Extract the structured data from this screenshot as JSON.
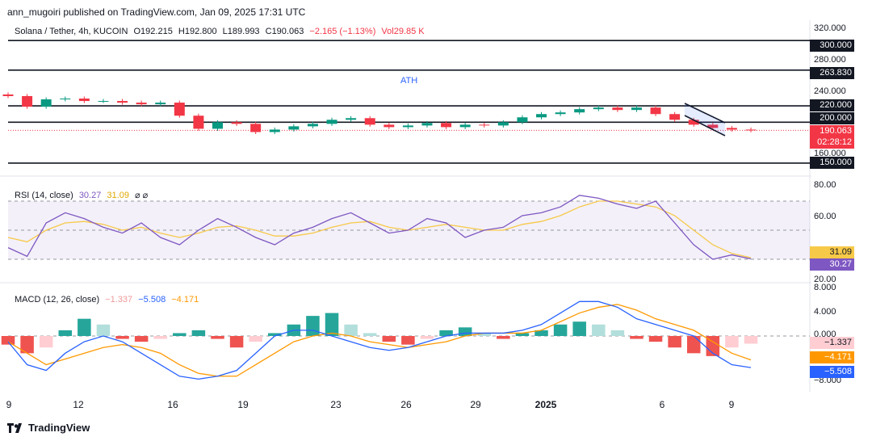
{
  "publisher_line": "ann_mugoiri published on TradingView.com, Jan 09, 2025 17:31 UTC",
  "header": {
    "symbol": "Solana / Tether, 4h, KUCOIN",
    "open": "O192.215",
    "high": "H192.800",
    "low": "L189.993",
    "close": "C190.063",
    "change": "−2.165 (−1.13%)",
    "volume": "Vol29.85 K"
  },
  "annotation_ath": "ATH",
  "rsi_header": {
    "label": "RSI (14, close)",
    "value1": "30.27",
    "value2": "31.09",
    "icons": "⌀ ⌀"
  },
  "macd_header": {
    "label": "MACD (12, 26, close)",
    "hist": "−1.337",
    "macd": "−5.508",
    "signal": "−4.171"
  },
  "price_axis": [
    "320.000",
    "280.000",
    "240.000",
    "160.000"
  ],
  "level_tags": [
    "300.000",
    "263.830",
    "220.000",
    "200.000",
    "150.000"
  ],
  "last_price": {
    "price": "190.063",
    "countdown": "02:28:12"
  },
  "rsi_axis": [
    "80.00",
    "60.00",
    "20.00"
  ],
  "rsi_tags": {
    "ma": "31.09",
    "rsi": "30.27"
  },
  "macd_axis": [
    "8.000",
    "4.000",
    "0.000",
    "−8.000"
  ],
  "macd_tags": {
    "hist": "−1.337",
    "signal": "−4.171",
    "macd": "−5.508"
  },
  "x_axis": [
    "9",
    "12",
    "16",
    "19",
    "23",
    "26",
    "29",
    "2025",
    "6",
    "9"
  ],
  "footer_logo": "TradingView",
  "colors": {
    "up": "#089981",
    "down": "#f23645",
    "rsi": "#7e57c2",
    "rsi_ma": "#f7c948",
    "macd": "#2962ff",
    "signal": "#ff9800",
    "hist_up_strong": "#26a69a",
    "hist_up_weak": "#b2dfdb",
    "hist_down_strong": "#ef5350",
    "hist_down_weak": "#ffcdd2"
  },
  "chart_data": {
    "type": "line",
    "title": "Solana / Tether, 4h, KUCOIN",
    "x": [
      "9",
      "12",
      "16",
      "19",
      "23",
      "26",
      "29",
      "2025",
      "6",
      "9"
    ],
    "price_close": [
      232,
      219,
      228,
      229,
      226,
      226,
      224,
      222,
      224,
      208,
      192,
      200,
      198,
      188,
      191,
      195,
      198,
      203,
      205,
      197,
      194,
      196,
      199,
      194,
      197,
      196,
      200,
      206,
      210,
      212,
      216,
      218,
      215,
      218,
      210,
      203,
      197,
      193,
      191,
      190.063
    ],
    "price_levels": [
      300,
      263.83,
      220,
      200,
      150
    ],
    "ylim_price": [
      140,
      320
    ],
    "rsi": [
      38,
      32,
      55,
      62,
      58,
      52,
      48,
      55,
      45,
      40,
      50,
      58,
      52,
      45,
      40,
      48,
      52,
      58,
      62,
      55,
      48,
      50,
      58,
      55,
      45,
      50,
      52,
      60,
      62,
      66,
      74,
      72,
      68,
      65,
      70,
      55,
      40,
      30,
      33,
      30.27
    ],
    "rsi_ma": [
      45,
      42,
      50,
      55,
      56,
      54,
      50,
      52,
      48,
      45,
      48,
      52,
      53,
      50,
      46,
      46,
      48,
      52,
      55,
      56,
      52,
      50,
      52,
      54,
      52,
      50,
      50,
      54,
      56,
      60,
      66,
      70,
      70,
      68,
      66,
      60,
      50,
      40,
      34,
      31.09
    ],
    "ylim_rsi": [
      15,
      85
    ],
    "macd_hist": [
      -1.5,
      -3,
      -2,
      1,
      3,
      2,
      -0.5,
      -1,
      -0.5,
      0.5,
      1,
      -0.5,
      -2,
      -1,
      0.5,
      2,
      3.5,
      4,
      2,
      0.5,
      -1,
      -1.5,
      -0.5,
      1,
      1.5,
      0.5,
      -0.5,
      0.5,
      1,
      2,
      2.5,
      2,
      1,
      -0.5,
      -1,
      -2,
      -3,
      -3.5,
      -2,
      -1.337
    ],
    "macd": [
      -1,
      -5,
      -6,
      -3,
      -1,
      0,
      -1,
      -3,
      -5,
      -7,
      -7.5,
      -7,
      -6,
      -3,
      0,
      1,
      1,
      0,
      -1,
      -2,
      -2.5,
      -2,
      -1,
      0,
      0.5,
      0.5,
      0.5,
      1,
      2,
      4,
      6,
      6,
      5,
      3,
      2,
      1,
      0,
      -3,
      -5,
      -5.508
    ],
    "macd_signal": [
      -1,
      -3,
      -5,
      -4,
      -3,
      -2,
      -1.5,
      -2,
      -3,
      -5,
      -6.5,
      -7,
      -7,
      -5,
      -3,
      -1,
      0,
      0.5,
      0,
      -1,
      -1.5,
      -2,
      -1.5,
      -1,
      0,
      0.5,
      0.5,
      0.5,
      1,
      2.5,
      4,
      5,
      5.5,
      4.5,
      3,
      2,
      1,
      -1,
      -3,
      -4.171
    ],
    "ylim_macd": [
      -9,
      9
    ]
  }
}
